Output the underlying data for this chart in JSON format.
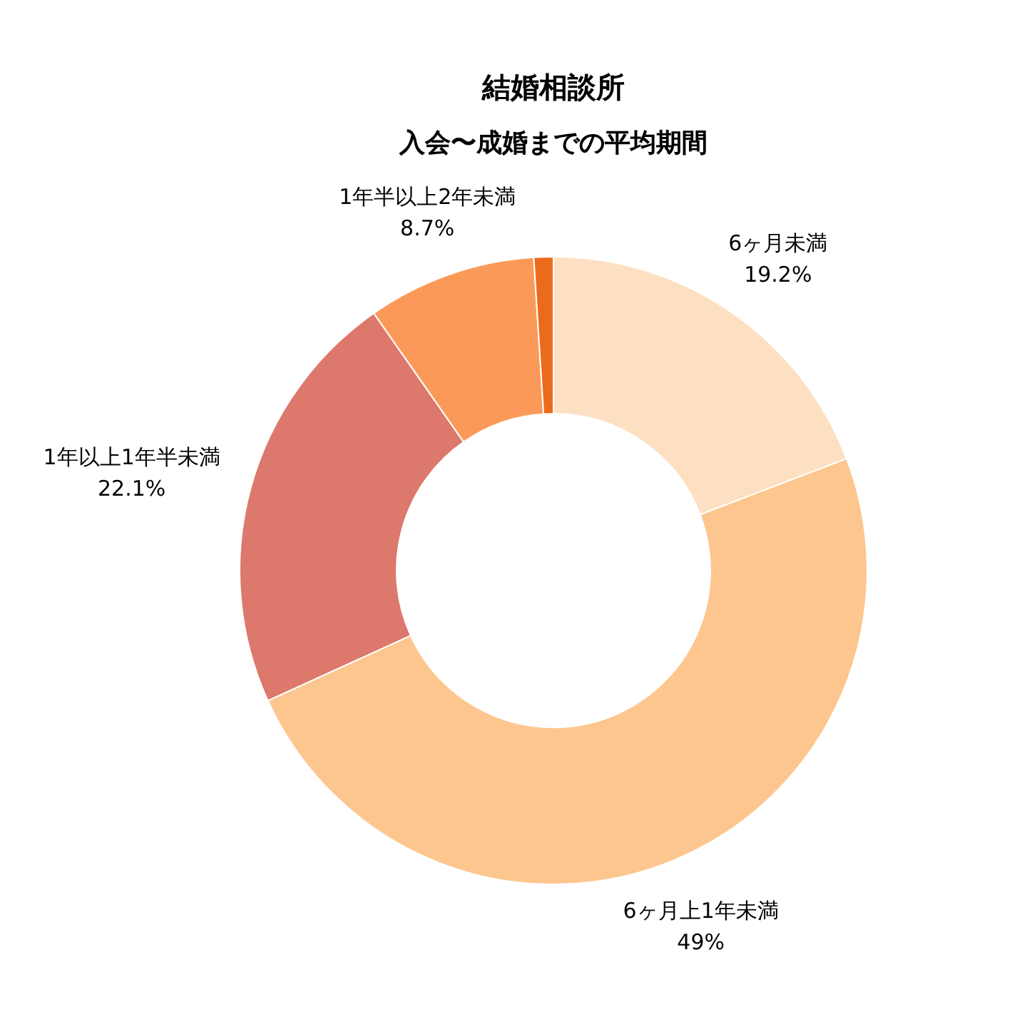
{
  "chart_data": {
    "type": "donut",
    "title": "結婚相談所",
    "subtitle": "入会〜成婚までの平均期間",
    "categories": [
      "6ヶ月未満",
      "6ヶ月上1年未満",
      "1年以上1年半未満",
      "1年半以上2年未満",
      null
    ],
    "values": [
      19.2,
      49,
      22.1,
      8.7,
      1.0
    ],
    "colors": [
      "#fde0c2",
      "#fdc68f",
      "#dc786c",
      "#fb9a58",
      "#ec6a1c"
    ],
    "value_labels": [
      "19.2%",
      "49%",
      "22.1%",
      "8.7%",
      null
    ],
    "legend": false
  }
}
